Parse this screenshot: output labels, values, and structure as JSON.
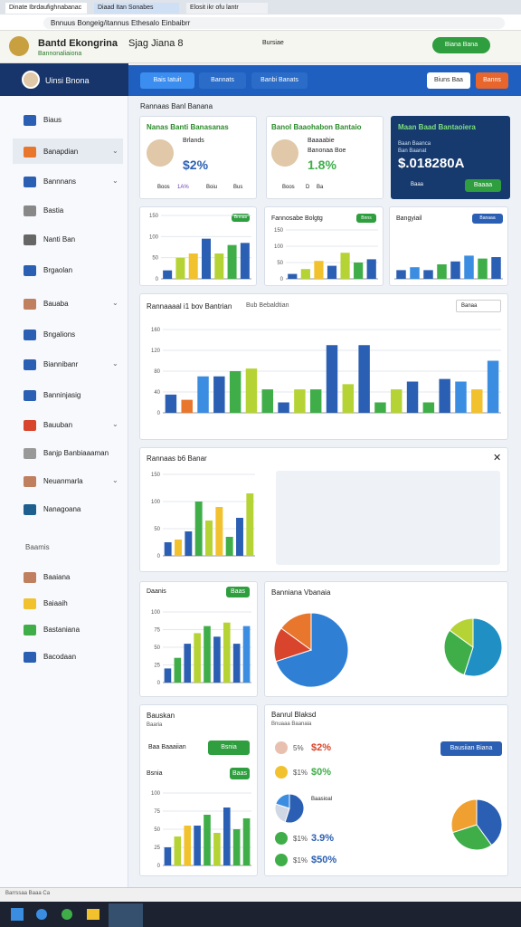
{
  "browser": {
    "tabs": [
      "Dinate Ibrdaufighnabanac",
      "Diaad Itan Sonabes",
      "Elosit ikr ofu lantr"
    ],
    "address": "Bnnuus Bongeig/itannus Ethesalo Einbaibrr"
  },
  "header": {
    "brand": "Bantd Ekongrina",
    "subtitle": "Bannonaliaiona",
    "nav": "Sjag Jiana 8",
    "link": "Bursiae",
    "button": "Biana Bana"
  },
  "sidebar": {
    "user": "Uinsi Bnona",
    "items": [
      "Biaus",
      "Banapdian",
      "Bannnans",
      "Bastia",
      "Nanti Ban",
      "Brgaolan",
      "Bauaba",
      "Bngalions",
      "Biannibanr",
      "Banninjasig",
      "Bauuban",
      "Banjp Banbiaaaman",
      "Neuanmarla",
      "Nanagoana"
    ],
    "section": "Baamis",
    "items2": [
      "Baaiana",
      "Baiaaih",
      "Bastaniana",
      "Bacodaan"
    ]
  },
  "toolbar": {
    "tabs": [
      "Bais Iatuit",
      "Bannats",
      "Banbi Banats"
    ],
    "buttons": [
      "Biuns Baa",
      "Banns"
    ]
  },
  "section_title": "Rannaas Banl Banana",
  "cards": [
    {
      "title": "Nanas Banti Banasanas",
      "label": "Brlands",
      "value": "$2%",
      "footer": [
        "Boos",
        "1A%",
        "Boiu",
        "Bus"
      ]
    },
    {
      "title": "Banol Baaohabon Bantaio",
      "label": "Baaaabie",
      "label2": "Banonaa Boe",
      "value": "1.8%",
      "footer": [
        "Boos",
        "D",
        "Ba"
      ]
    },
    {
      "title": "Maan Baad Bantaoiera",
      "label": "Baan Baanca",
      "label2": "Ban Baanat",
      "value": "$.018280A",
      "footer": [
        "Baaa"
      ],
      "button": "Baaaa"
    }
  ],
  "charts": {
    "small1": {
      "button": "Bnnas",
      "values": [
        20,
        50,
        60,
        95,
        60,
        80,
        85
      ],
      "colors": [
        "#2b5fb3",
        "#b5d334",
        "#f2c12e",
        "#2b5fb3",
        "#b5d334",
        "#3fae49",
        "#2b5fb3"
      ],
      "ylim": [
        0,
        150
      ],
      "yticks": [
        0,
        50,
        100,
        150
      ]
    },
    "small2": {
      "title": "Fannosabe Bolgtg",
      "button": "Bnns",
      "values": [
        15,
        30,
        55,
        40,
        80,
        50,
        60
      ],
      "colors": [
        "#2b5fb3",
        "#b5d334",
        "#f2c12e",
        "#2b5fb3",
        "#b5d334",
        "#3fae49",
        "#2b5fb3"
      ],
      "ylim": [
        0,
        150
      ],
      "yticks": [
        0,
        50,
        100,
        150
      ]
    },
    "small3": {
      "title": "Bangyiail",
      "button": "Banaaa",
      "values": [
        30,
        40,
        30,
        50,
        60,
        80,
        70,
        75
      ],
      "colors": [
        "#2b5fb3",
        "#3a8de0",
        "#2b5fb3",
        "#3fae49",
        "#2b5fb3",
        "#3a8de0",
        "#3fae49",
        "#2b5fb3"
      ],
      "ylim": [
        0,
        150
      ],
      "yticks": []
    },
    "big": {
      "title": "Rannaaaal i1 bov Bantrian",
      "link": "Bub Bebaldtian",
      "select": "Banaa",
      "values": [
        35,
        25,
        70,
        70,
        80,
        85,
        45,
        20,
        45,
        45,
        130,
        55,
        130,
        20,
        45,
        60,
        20,
        65,
        60,
        45,
        100
      ],
      "colors": [
        "#2b5fb3",
        "#e8762c",
        "#3a8de0",
        "#2b5fb3",
        "#3fae49",
        "#b5d334",
        "#3fae49",
        "#2b5fb3",
        "#b5d334",
        "#3fae49",
        "#2b5fb3",
        "#b5d334",
        "#2b5fb3",
        "#3fae49",
        "#b5d334",
        "#2b5fb3",
        "#3fae49",
        "#2b5fb3",
        "#3a8de0",
        "#f2c12e",
        "#3a8de0"
      ],
      "ylim": [
        0,
        160
      ],
      "yticks": [
        0,
        40,
        80,
        120,
        160
      ]
    },
    "panel": {
      "title": "Rannaas b6 Banar",
      "values": [
        25,
        30,
        45,
        100,
        65,
        90,
        35,
        70,
        115
      ],
      "colors": [
        "#2b5fb3",
        "#f2c12e",
        "#2b5fb3",
        "#3fae49",
        "#b5d334",
        "#f2c12e",
        "#3fae49",
        "#2b5fb3",
        "#b5d334"
      ],
      "ylim": [
        0,
        150
      ],
      "yticks": [
        0,
        50,
        100,
        150
      ]
    },
    "daanis": {
      "title": "Daanis",
      "button": "Baas",
      "values": [
        20,
        35,
        55,
        70,
        80,
        65,
        85,
        55,
        80
      ],
      "colors": [
        "#2b5fb3",
        "#3fae49",
        "#2b5fb3",
        "#b5d334",
        "#3fae49",
        "#2b5fb3",
        "#b5d334",
        "#2b5fb3",
        "#3a8de0"
      ],
      "ylim": [
        0,
        100
      ],
      "yticks": [
        0,
        25,
        50,
        75,
        100
      ]
    },
    "banns": {
      "title": "Bsnia",
      "button": "Baas",
      "values": [
        25,
        40,
        55,
        55,
        70,
        45,
        80,
        50,
        65
      ],
      "colors": [
        "#2b5fb3",
        "#b5d334",
        "#f2c12e",
        "#2b5fb3",
        "#3fae49",
        "#b5d334",
        "#2b5fb3",
        "#3fae49",
        "#3fae49"
      ],
      "ylim": [
        0,
        100
      ],
      "yticks": [
        0,
        25,
        50,
        75,
        100
      ]
    },
    "pie1": {
      "values": [
        70,
        15,
        15
      ],
      "colors": [
        "#2f7fd4",
        "#d8452c",
        "#e8762c"
      ]
    },
    "pie2": {
      "values": [
        55,
        30,
        15
      ],
      "colors": [
        "#1f8fc4",
        "#3fae49",
        "#b5d334"
      ]
    },
    "pie3": {
      "values": [
        55,
        25,
        20
      ],
      "colors": [
        "#2b5fb3",
        "#cfd8e4",
        "#3a8de0"
      ]
    },
    "pie4": {
      "values": [
        40,
        30,
        30
      ],
      "colors": [
        "#2b5fb3",
        "#3fae49",
        "#f0a030"
      ]
    }
  },
  "pies_title": "Banniana Vbanaia",
  "left_bottom": {
    "title": "Bauskan",
    "sub": "Baaria",
    "row": "Baa Baaaiian",
    "button": "Bsnia"
  },
  "list": {
    "title": "Banrul Blaksd",
    "sub": "Bnuaaa Baanaia",
    "button": "Bausiian Biana",
    "rows": [
      [
        "5%",
        "$2%"
      ],
      [
        "$1%",
        "$0%"
      ],
      [
        "$1%",
        "3.9%"
      ],
      [
        "$1%",
        "$50%"
      ]
    ],
    "label": "Baasioal"
  },
  "status": "Barrssaa Baaa Ca"
}
